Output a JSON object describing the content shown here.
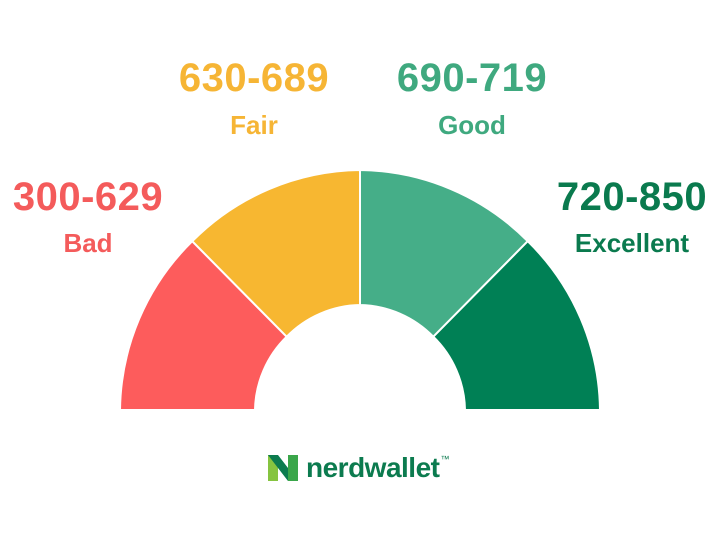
{
  "bands": [
    {
      "range": "300-629",
      "name": "Bad",
      "color": "#fd5c5c",
      "text_color": "#f45b5b"
    },
    {
      "range": "630-689",
      "name": "Fair",
      "color": "#f7b731",
      "text_color": "#f6b535"
    },
    {
      "range": "690-719",
      "name": "Good",
      "color": "#45ae88",
      "text_color": "#3fa97f"
    },
    {
      "range": "720-850",
      "name": "Excellent",
      "color": "#008055",
      "text_color": "#0a7a4e"
    }
  ],
  "logo": {
    "text": "nerdwallet",
    "tm": "™",
    "color": "#0c7b4f",
    "icon": "nerdwallet-n-icon"
  }
}
